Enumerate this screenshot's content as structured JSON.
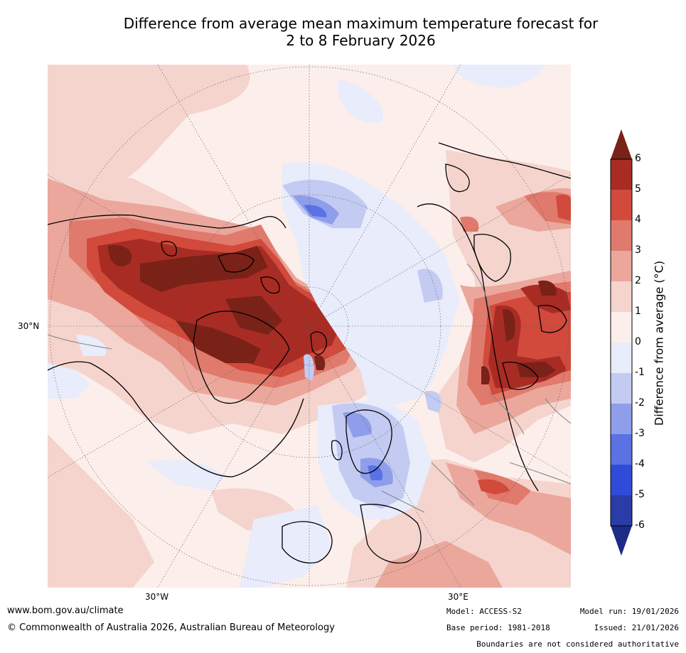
{
  "title_line1": "Difference from average mean maximum temperature forecast for",
  "title_line2": "2 to 8 February 2026",
  "map": {
    "lat_label": "30°N",
    "lon_label_west": "30°W",
    "lon_label_east": "30°E"
  },
  "colorbar": {
    "title": "Difference from average (°C)",
    "ticks": [
      "6",
      "5",
      "4",
      "3",
      "2",
      "1",
      "0",
      "-1",
      "-2",
      "-3",
      "-4",
      "-5",
      "-6"
    ],
    "colors": [
      "#7a2118",
      "#a82c24",
      "#d14a3c",
      "#e07a6c",
      "#eba79c",
      "#f5d4ce",
      "#fceeeb",
      "#e8ecfb",
      "#c3cbf3",
      "#8f9eea",
      "#5a72e3",
      "#2f4bd8",
      "#2a3ca8",
      "#1d2a86"
    ]
  },
  "footer": {
    "url": "www.bom.gov.au/climate",
    "copyright": "© Commonwealth of Australia 2026, Australian Bureau of Meteorology",
    "model": "Model: ACCESS-S2",
    "base_period": "Base period: 1981-2018",
    "model_run": "Model run: 19/01/2026",
    "issued": "Issued: 21/01/2026",
    "disclaimer": "Boundaries are not considered authoritative"
  }
}
